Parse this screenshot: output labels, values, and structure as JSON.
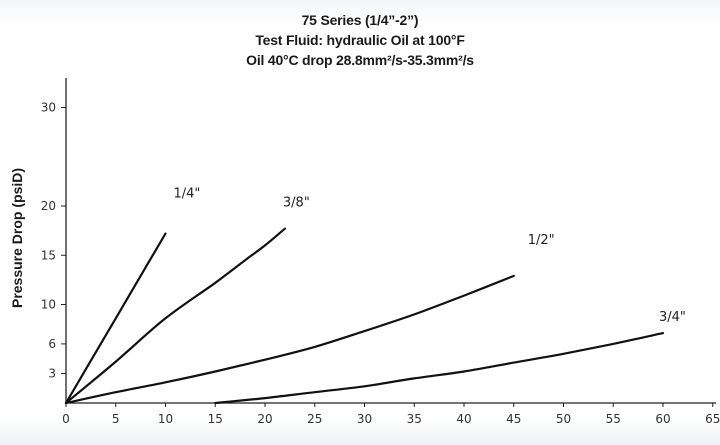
{
  "chart_data": {
    "type": "line",
    "title": [
      "75 Series (1/4”-2”)",
      "Test Fluid: hydraulic Oil at 100°F",
      "Oil 40°C drop 28.8mm²/s-35.3mm²/s"
    ],
    "xlabel": "",
    "ylabel": "Pressure Drop (psiD)",
    "x_ticks": [
      {
        "value": 0,
        "label": "0"
      },
      {
        "value": 5,
        "label": "5"
      },
      {
        "value": 10,
        "label": "10"
      },
      {
        "value": 15,
        "label": "15"
      },
      {
        "value": 20,
        "label": "20"
      },
      {
        "value": 25,
        "label": "25"
      },
      {
        "value": 30,
        "label": "30"
      },
      {
        "value": 35,
        "label": "35"
      },
      {
        "value": 40,
        "label": "40"
      },
      {
        "value": 45,
        "label": "45"
      },
      {
        "value": 50,
        "label": "50"
      },
      {
        "value": 55,
        "label": "55"
      },
      {
        "value": 60,
        "label": "60"
      },
      {
        "value": 65,
        "label": "65"
      }
    ],
    "y_ticks": [
      {
        "value": 3,
        "label": "3"
      },
      {
        "value": 6,
        "label": "6"
      },
      {
        "value": 10,
        "label": "10"
      },
      {
        "value": 15,
        "label": "15"
      },
      {
        "value": 20,
        "label": "20"
      },
      {
        "value": 30,
        "label": "30"
      }
    ],
    "xlim": [
      0,
      65
    ],
    "ylim": [
      0,
      33
    ],
    "grid": false,
    "series": [
      {
        "name": "1/4\"",
        "color": "#111111",
        "x": [
          0,
          2.5,
          5,
          7.5,
          10
        ],
        "y": [
          0,
          4.3,
          8.6,
          12.9,
          17.2
        ]
      },
      {
        "name": "3/8\"",
        "color": "#111111",
        "x": [
          0,
          5,
          10,
          15,
          18,
          20,
          22
        ],
        "y": [
          0,
          4.2,
          8.6,
          12.2,
          14.5,
          16.0,
          17.7
        ]
      },
      {
        "name": "1/2\"",
        "color": "#111111",
        "x": [
          0,
          5,
          10,
          15,
          20,
          25,
          30,
          35,
          40,
          45
        ],
        "y": [
          0,
          1.1,
          2.1,
          3.2,
          4.4,
          5.7,
          7.3,
          9.0,
          10.9,
          12.9
        ]
      },
      {
        "name": "3/4\"",
        "color": "#111111",
        "x": [
          15,
          20,
          25,
          30,
          35,
          40,
          45,
          50,
          55,
          60
        ],
        "y": [
          0,
          0.5,
          1.1,
          1.7,
          2.5,
          3.2,
          4.1,
          5.0,
          6.0,
          7.1
        ]
      }
    ]
  }
}
